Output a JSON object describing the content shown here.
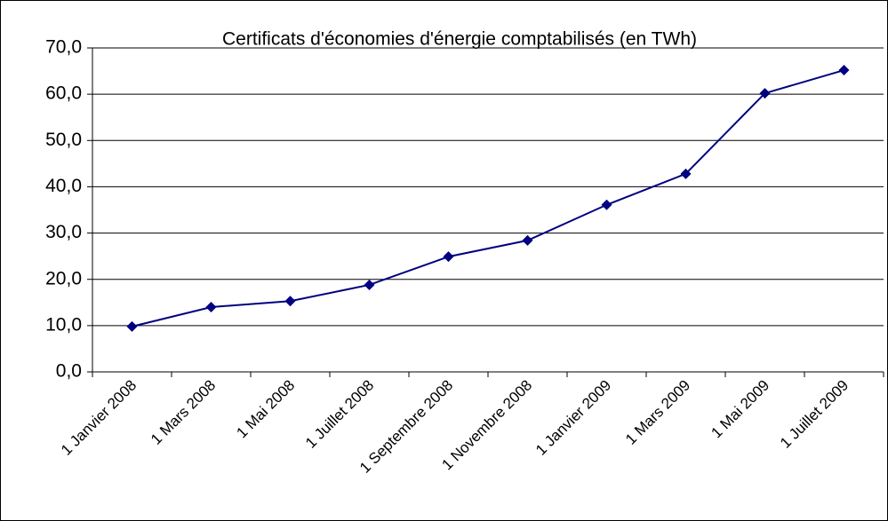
{
  "chart_data": {
    "type": "line",
    "title": "Certificats d'économies d'énergie comptabilisés (en TWh)",
    "categories": [
      "1 Janvier 2008",
      "1 Mars 2008",
      "1 Mai 2008",
      "1 Juillet 2008",
      "1 Septembre 2008",
      "1 Novembre 2008",
      "1 Janvier 2009",
      "1 Mars 2009",
      "1 Mai 2009",
      "1 Juillet 2009"
    ],
    "values": [
      9.8,
      14.0,
      15.3,
      18.8,
      24.9,
      28.4,
      36.1,
      42.8,
      60.2,
      65.2
    ],
    "color": "#000080",
    "ylim": [
      0,
      70
    ],
    "yticks": [
      {
        "value": 0,
        "label": "0,0"
      },
      {
        "value": 10,
        "label": "10,0"
      },
      {
        "value": 20,
        "label": "20,0"
      },
      {
        "value": 30,
        "label": "30,0"
      },
      {
        "value": 40,
        "label": "40,0"
      },
      {
        "value": 50,
        "label": "50,0"
      },
      {
        "value": 60,
        "label": "60,0"
      },
      {
        "value": 70,
        "label": "70,0"
      }
    ],
    "grid": true
  }
}
